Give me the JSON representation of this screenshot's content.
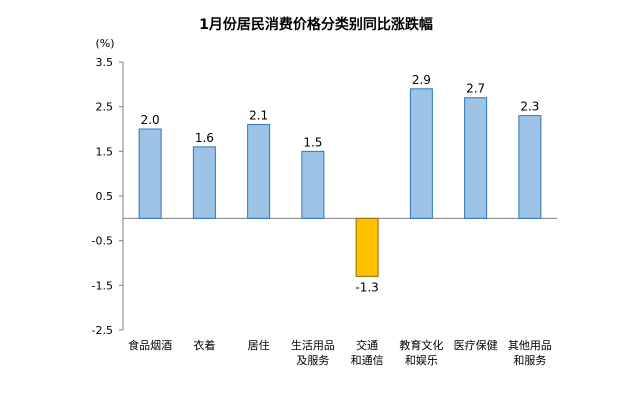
{
  "chart_data": {
    "type": "bar",
    "title": "1月份居民消费价格分类别同比涨跌幅",
    "ylabel": "(%)",
    "xlabel": "",
    "ylim": [
      -2.5,
      3.5
    ],
    "yticks": [
      3.5,
      2.5,
      1.5,
      0.5,
      -0.5,
      -1.5,
      -2.5
    ],
    "ytick_labels": [
      "3.5",
      "2.5",
      "1.5",
      "0.5",
      "-0.5",
      "-1.5",
      "-2.5"
    ],
    "grid": false,
    "legend": "none",
    "categories": [
      [
        "食品烟酒"
      ],
      [
        "衣着"
      ],
      [
        "居住"
      ],
      [
        "生活用品",
        "及服务"
      ],
      [
        "交通",
        "和通信"
      ],
      [
        "教育文化",
        "和娱乐"
      ],
      [
        "医疗保健"
      ],
      [
        "其他用品",
        "和服务"
      ]
    ],
    "values": [
      2.0,
      1.6,
      2.1,
      1.5,
      -1.3,
      2.9,
      2.7,
      2.3
    ],
    "value_labels": [
      "2.0",
      "1.6",
      "2.1",
      "1.5",
      "-1.3",
      "2.9",
      "2.7",
      "2.3"
    ],
    "colors": {
      "positive_fill": "#9dc3e6",
      "positive_stroke": "#2e75b6",
      "negative_fill": "#ffc000",
      "negative_stroke": "#8a6d00",
      "axis": "#808080"
    }
  }
}
